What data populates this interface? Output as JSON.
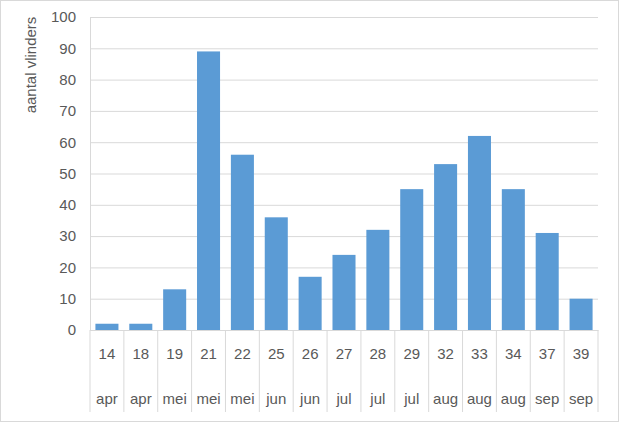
{
  "chart_data": {
    "type": "bar",
    "y_label": "aantal vlinders",
    "categories": [
      [
        "14",
        "apr"
      ],
      [
        "18",
        "apr"
      ],
      [
        "19",
        "mei"
      ],
      [
        "21",
        "mei"
      ],
      [
        "22",
        "mei"
      ],
      [
        "25",
        "jun"
      ],
      [
        "26",
        "jun"
      ],
      [
        "27",
        "jul"
      ],
      [
        "28",
        "jul"
      ],
      [
        "29",
        "jul"
      ],
      [
        "32",
        "aug"
      ],
      [
        "33",
        "aug"
      ],
      [
        "34",
        "aug"
      ],
      [
        "37",
        "sep"
      ],
      [
        "39",
        "sep"
      ]
    ],
    "values": [
      2,
      2,
      13,
      89,
      56,
      36,
      17,
      24,
      32,
      45,
      53,
      62,
      45,
      31,
      10
    ],
    "color": "#5b9bd5",
    "ylim": [
      0,
      100
    ],
    "yticks": [
      0,
      10,
      20,
      30,
      40,
      50,
      60,
      70,
      80,
      90,
      100
    ],
    "grid": true
  }
}
